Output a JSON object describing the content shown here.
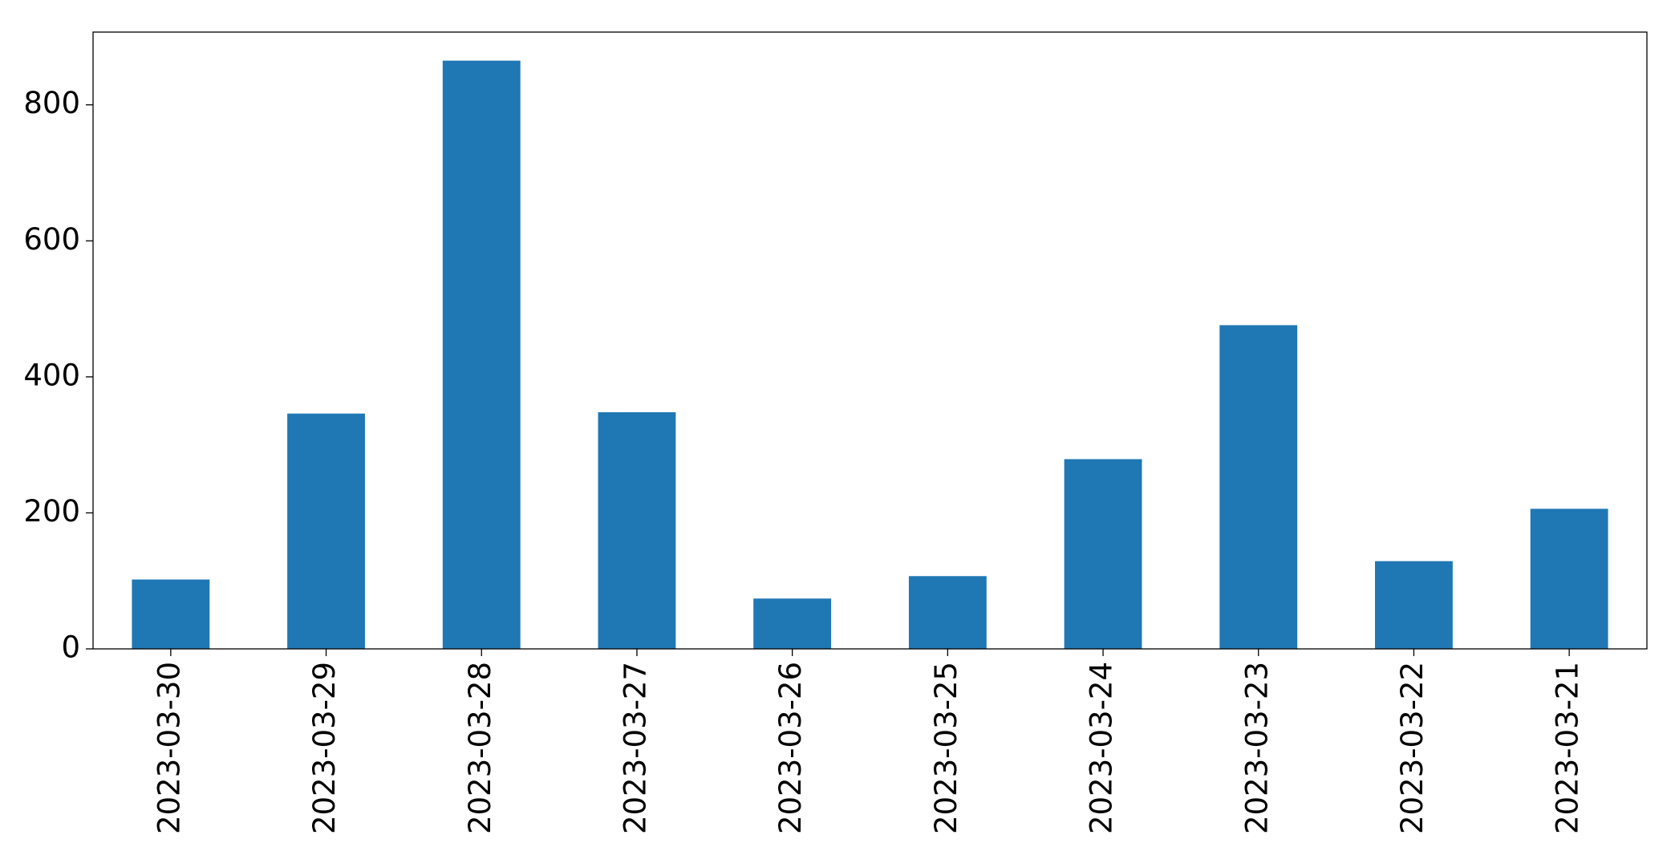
{
  "chart_data": {
    "type": "bar",
    "categories": [
      "2023-03-30",
      "2023-03-29",
      "2023-03-28",
      "2023-03-27",
      "2023-03-26",
      "2023-03-25",
      "2023-03-24",
      "2023-03-23",
      "2023-03-22",
      "2023-03-21"
    ],
    "values": [
      102,
      346,
      865,
      348,
      74,
      107,
      279,
      476,
      129,
      206
    ],
    "color": "#1f77b4",
    "ylim": [
      0,
      907
    ],
    "yticks": [
      0,
      200,
      400,
      600,
      800
    ],
    "grid": false
  }
}
